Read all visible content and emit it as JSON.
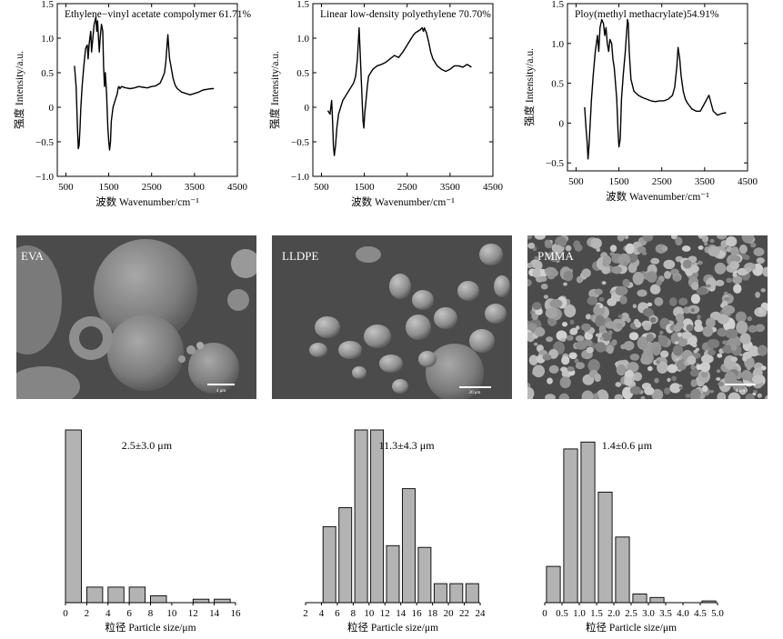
{
  "chart_data": [
    {
      "type": "line",
      "id": "spec-eva",
      "title": "Ethylene−vinyl acetate compolymer 61.71%",
      "xlabel": "波数 Wavenumber/cm⁻¹",
      "ylabel": "强度 Intensity/a.u.",
      "xlim": [
        300,
        4500
      ],
      "ylim": [
        -1.0,
        1.5
      ],
      "xticks": [
        500,
        1500,
        2500,
        3500,
        4500
      ],
      "xtick_labels": [
        "500",
        "1500",
        "2500",
        "3500",
        "4500"
      ],
      "yticks": [
        -1.0,
        -0.5,
        0,
        0.5,
        1.0,
        1.5
      ],
      "ytick_labels": [
        "−1.0",
        "−0.5",
        "0",
        "0.5",
        "1.0",
        "1.5"
      ],
      "x": [
        700,
        740,
        770,
        790,
        810,
        830,
        850,
        880,
        920,
        960,
        1000,
        1020,
        1040,
        1060,
        1080,
        1100,
        1130,
        1160,
        1200,
        1220,
        1240,
        1260,
        1280,
        1300,
        1330,
        1360,
        1380,
        1400,
        1420,
        1450,
        1480,
        1500,
        1520,
        1540,
        1560,
        1600,
        1650,
        1700,
        1720,
        1740,
        1760,
        1800,
        1900,
        2000,
        2100,
        2200,
        2300,
        2400,
        2500,
        2600,
        2700,
        2750,
        2800,
        2830,
        2860,
        2880,
        2900,
        2920,
        2950,
        3000,
        3050,
        3100,
        3200,
        3300,
        3400,
        3500,
        3600,
        3700,
        3800,
        3900,
        3950
      ],
      "y": [
        0.6,
        0.3,
        -0.3,
        -0.6,
        -0.55,
        -0.3,
        0.0,
        0.3,
        0.6,
        0.85,
        0.9,
        0.7,
        0.9,
        1.0,
        1.1,
        0.8,
        1.0,
        1.2,
        1.3,
        1.1,
        1.25,
        1.0,
        0.8,
        1.0,
        1.2,
        1.1,
        0.6,
        0.3,
        0.5,
        0.2,
        -0.3,
        -0.5,
        -0.62,
        -0.5,
        -0.2,
        0.0,
        0.1,
        0.2,
        0.28,
        0.3,
        0.27,
        0.3,
        0.28,
        0.27,
        0.28,
        0.3,
        0.29,
        0.28,
        0.3,
        0.31,
        0.35,
        0.42,
        0.5,
        0.65,
        0.9,
        1.05,
        0.85,
        0.7,
        0.6,
        0.42,
        0.32,
        0.27,
        0.22,
        0.2,
        0.18,
        0.2,
        0.22,
        0.25,
        0.26,
        0.27,
        0.27
      ]
    },
    {
      "type": "line",
      "id": "spec-lldpe",
      "title": "Linear low-density polyethylene 70.70%",
      "xlabel": "波数 Wavenumber/cm⁻¹",
      "ylabel": "强度 Intensity/a.u.",
      "xlim": [
        300,
        4500
      ],
      "ylim": [
        -1.0,
        1.5
      ],
      "xticks": [
        500,
        1500,
        2500,
        3500,
        4500
      ],
      "xtick_labels": [
        "500",
        "1500",
        "2500",
        "3500",
        "4500"
      ],
      "yticks": [
        -1.0,
        -0.5,
        0,
        0.5,
        1.0,
        1.5
      ],
      "ytick_labels": [
        "−1.0",
        "−0.5",
        "0",
        "0.5",
        "1.0",
        "1.5"
      ],
      "x": [
        650,
        700,
        740,
        760,
        780,
        800,
        830,
        860,
        900,
        950,
        1000,
        1050,
        1100,
        1150,
        1200,
        1250,
        1300,
        1340,
        1380,
        1420,
        1450,
        1470,
        1490,
        1510,
        1540,
        1570,
        1600,
        1650,
        1700,
        1800,
        1900,
        2000,
        2100,
        2200,
        2300,
        2400,
        2500,
        2600,
        2650,
        2700,
        2750,
        2800,
        2850,
        2880,
        2900,
        2920,
        2950,
        3000,
        3050,
        3100,
        3150,
        3200,
        3300,
        3400,
        3500,
        3600,
        3700,
        3800,
        3900,
        4000
      ],
      "y": [
        -0.05,
        -0.1,
        0.1,
        -0.2,
        -0.55,
        -0.7,
        -0.55,
        -0.3,
        -0.1,
        0.0,
        0.1,
        0.15,
        0.2,
        0.25,
        0.3,
        0.35,
        0.45,
        0.7,
        1.15,
        0.55,
        0.1,
        -0.2,
        -0.3,
        -0.1,
        0.1,
        0.3,
        0.45,
        0.5,
        0.55,
        0.6,
        0.62,
        0.65,
        0.7,
        0.75,
        0.72,
        0.8,
        0.9,
        1.0,
        1.05,
        1.08,
        1.1,
        1.12,
        1.15,
        1.1,
        1.15,
        1.12,
        1.08,
        0.95,
        0.8,
        0.7,
        0.65,
        0.6,
        0.55,
        0.52,
        0.55,
        0.6,
        0.6,
        0.58,
        0.62,
        0.58
      ]
    },
    {
      "type": "line",
      "id": "spec-pmma",
      "title": "Ploy(methyl methacrylate)54.91%",
      "xlabel": "波数 Wavenumber/cm⁻¹",
      "ylabel": "强度 Intensity/a.u.",
      "xlim": [
        300,
        4500
      ],
      "ylim": [
        -0.6,
        1.5
      ],
      "xticks": [
        500,
        1500,
        2500,
        3500,
        4500
      ],
      "xtick_labels": [
        "500",
        "1500",
        "2500",
        "3500",
        "4500"
      ],
      "yticks": [
        -0.5,
        0,
        0.5,
        1.0,
        1.5
      ],
      "ytick_labels": [
        "−0.5",
        "0",
        "0.5",
        "1.0",
        "1.5"
      ],
      "x": [
        700,
        730,
        760,
        780,
        800,
        830,
        860,
        900,
        950,
        1000,
        1030,
        1060,
        1100,
        1140,
        1170,
        1200,
        1230,
        1260,
        1290,
        1330,
        1360,
        1390,
        1420,
        1450,
        1480,
        1500,
        1530,
        1560,
        1600,
        1650,
        1700,
        1720,
        1740,
        1780,
        1850,
        1950,
        2050,
        2150,
        2250,
        2350,
        2450,
        2550,
        2650,
        2750,
        2800,
        2850,
        2880,
        2920,
        2950,
        3000,
        3050,
        3100,
        3200,
        3300,
        3400,
        3500,
        3550,
        3600,
        3650,
        3700,
        3800,
        3900,
        4000
      ],
      "y": [
        0.2,
        -0.05,
        -0.25,
        -0.45,
        -0.3,
        0.0,
        0.3,
        0.6,
        0.9,
        1.1,
        0.9,
        1.2,
        1.3,
        1.25,
        1.1,
        1.2,
        1.0,
        0.9,
        1.05,
        1.0,
        0.8,
        0.7,
        0.5,
        0.3,
        -0.1,
        -0.3,
        -0.2,
        0.3,
        0.6,
        0.9,
        1.3,
        1.25,
        0.9,
        0.55,
        0.4,
        0.35,
        0.32,
        0.3,
        0.28,
        0.27,
        0.28,
        0.28,
        0.3,
        0.35,
        0.45,
        0.7,
        0.95,
        0.8,
        0.6,
        0.4,
        0.3,
        0.25,
        0.18,
        0.15,
        0.15,
        0.25,
        0.3,
        0.35,
        0.25,
        0.15,
        0.1,
        0.12,
        0.13
      ]
    },
    {
      "type": "bar",
      "id": "hist-eva",
      "annotation": "2.5±3.0 μm",
      "xlabel": "粒径 Particle size/μm",
      "xlim": [
        0,
        16
      ],
      "ylim": [
        0,
        100
      ],
      "xticks": [
        0,
        2,
        4,
        6,
        8,
        10,
        12,
        14,
        16
      ],
      "xtick_labels": [
        "0",
        "2",
        "4",
        "6",
        "8",
        "10",
        "12",
        "14",
        "16"
      ],
      "bins": [
        [
          0,
          1.5
        ],
        [
          2,
          3.5
        ],
        [
          4,
          5.5
        ],
        [
          6,
          7.5
        ],
        [
          8,
          9.5
        ],
        [
          10,
          11.5
        ],
        [
          12,
          13.5
        ],
        [
          14,
          15.5
        ]
      ],
      "values": [
        100,
        9,
        9,
        9,
        4,
        0,
        2,
        2
      ]
    },
    {
      "type": "bar",
      "id": "hist-lldpe",
      "annotation": "11.3±4.3 μm",
      "xlabel": "粒径 Particle size/μm",
      "xlim": [
        2,
        24
      ],
      "ylim": [
        0,
        100
      ],
      "xticks": [
        2,
        4,
        6,
        8,
        10,
        12,
        14,
        16,
        18,
        20,
        22,
        24
      ],
      "xtick_labels": [
        "2",
        "4",
        "6",
        "8",
        "10",
        "12",
        "14",
        "16",
        "18",
        "20",
        "22",
        "24"
      ],
      "bins": [
        [
          4.2,
          5.8
        ],
        [
          6.2,
          7.8
        ],
        [
          8.2,
          9.8
        ],
        [
          10.2,
          11.8
        ],
        [
          12.2,
          13.8
        ],
        [
          14.2,
          15.8
        ],
        [
          16.2,
          17.8
        ],
        [
          18.2,
          19.8
        ],
        [
          20.2,
          21.8
        ],
        [
          22.2,
          23.8
        ]
      ],
      "values": [
        44,
        55,
        100,
        100,
        33,
        66,
        32,
        11,
        11,
        11
      ]
    },
    {
      "type": "bar",
      "id": "hist-pmma",
      "annotation": "1.4±0.6 μm",
      "xlabel": "粒径 Particle size/μm",
      "xlim": [
        0,
        5.0
      ],
      "ylim": [
        0,
        100
      ],
      "xticks": [
        0,
        0.5,
        1.0,
        1.5,
        2.0,
        2.5,
        3.0,
        3.5,
        4.0,
        4.5,
        5.0
      ],
      "xtick_labels": [
        "0",
        "0.5",
        "1.0",
        "1.5",
        "2.0",
        "2.5",
        "3.0",
        "3.5",
        "4.0",
        "4.5",
        "5.0"
      ],
      "bins": [
        [
          0.05,
          0.45
        ],
        [
          0.55,
          0.95
        ],
        [
          1.05,
          1.45
        ],
        [
          1.55,
          1.95
        ],
        [
          2.05,
          2.45
        ],
        [
          2.55,
          2.95
        ],
        [
          3.05,
          3.45
        ],
        [
          4.55,
          4.95
        ]
      ],
      "values": [
        21,
        89,
        93,
        64,
        38,
        5,
        3,
        1
      ]
    }
  ],
  "sem": [
    {
      "label": "EVA",
      "scale_bar": "4 μm"
    },
    {
      "label": "LLDPE",
      "scale_bar": "20 μm"
    },
    {
      "label": "PMMA",
      "scale_bar": "4 μm"
    }
  ]
}
